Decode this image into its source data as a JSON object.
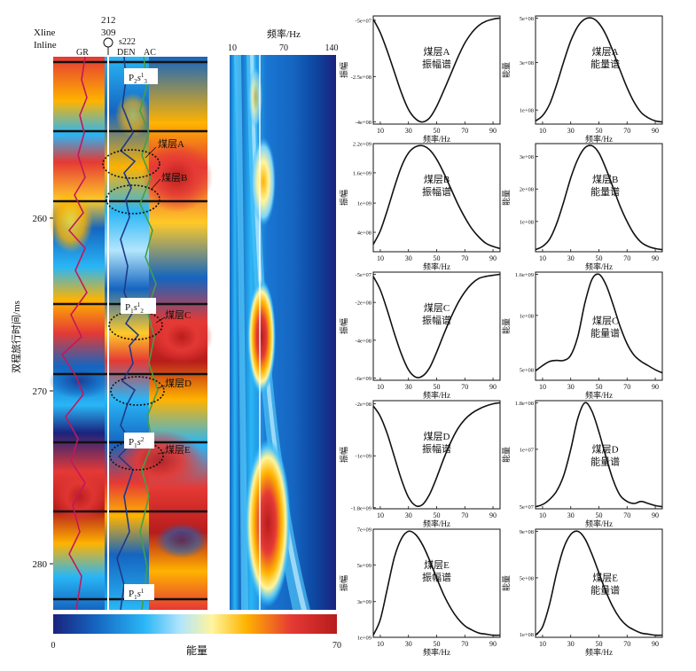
{
  "left_panel": {
    "header_xline": "Xline",
    "header_inline": "Inline",
    "xline_value": "212",
    "inline_value": "309",
    "well_name": "s222",
    "curve_labels": [
      "GR",
      "DEN",
      "AC"
    ],
    "y_axis_label": "双程旅行时间/ms",
    "y_ticks": [
      "260",
      "270",
      "280"
    ],
    "seam_labels": [
      "煤层A",
      "煤层B",
      "煤层C",
      "煤层D",
      "煤层E"
    ],
    "formation_tags": [
      {
        "main": "P",
        "sub": "2",
        "mid": "s",
        "sup": "1",
        "sub2": "3"
      },
      {
        "main": "P",
        "sub": "1",
        "mid": "s",
        "sup": "1",
        "sub2": "2"
      },
      {
        "main": "P",
        "sub": "1",
        "mid": "s",
        "sup": "2",
        "sub2": ""
      },
      {
        "main": "P",
        "sub": "1",
        "mid": "s",
        "sup": "1",
        "sub2": ""
      }
    ]
  },
  "middle_panel": {
    "x_axis_label": "频率/Hz",
    "x_ticks": [
      "10",
      "70",
      "140"
    ]
  },
  "colorbar": {
    "label": "能量",
    "min": "0",
    "max": "70",
    "colors": [
      "#1a237e",
      "#1565c0",
      "#29b6f6",
      "#b3e5fc",
      "#fff59d",
      "#ffb300",
      "#e53935",
      "#b71c1c"
    ]
  },
  "chart_data": [
    {
      "id": "A-amp",
      "type": "line",
      "text1": "煤层A",
      "text2": "振幅谱",
      "ylabel": "振幅",
      "xlabel": "频率/Hz",
      "x_ticks": [
        10,
        30,
        50,
        70,
        90
      ],
      "y_ticks": [
        "-5e+07",
        "-2.5e+08",
        "-4e+08"
      ],
      "xlim": [
        5,
        95
      ],
      "ylim": [
        0,
        1
      ],
      "y_tick_pos": [
        0.96,
        0.44,
        0.02
      ],
      "x": [
        5,
        10,
        15,
        20,
        25,
        30,
        35,
        40,
        45,
        50,
        55,
        60,
        65,
        70,
        75,
        80,
        85,
        90,
        95
      ],
      "values": [
        0.99,
        0.86,
        0.68,
        0.48,
        0.28,
        0.12,
        0.03,
        0.0,
        0.04,
        0.15,
        0.3,
        0.46,
        0.62,
        0.76,
        0.86,
        0.93,
        0.97,
        0.99,
        1.0
      ]
    },
    {
      "id": "A-en",
      "type": "line",
      "text1": "煤层A",
      "text2": "能量谱",
      "ylabel": "能量",
      "xlabel": "频率/Hz",
      "x_ticks": [
        10,
        30,
        50,
        70,
        90
      ],
      "y_ticks": [
        "5e+08",
        "3e+08",
        "1e+08"
      ],
      "xlim": [
        5,
        95
      ],
      "ylim": [
        0,
        1
      ],
      "y_tick_pos": [
        0.98,
        0.57,
        0.13
      ],
      "x": [
        5,
        10,
        15,
        20,
        25,
        30,
        35,
        40,
        45,
        50,
        55,
        60,
        65,
        70,
        75,
        80,
        85,
        90,
        95
      ],
      "values": [
        0.01,
        0.06,
        0.17,
        0.36,
        0.58,
        0.78,
        0.92,
        0.99,
        1.0,
        0.95,
        0.84,
        0.68,
        0.5,
        0.33,
        0.19,
        0.09,
        0.04,
        0.01,
        0.0
      ]
    },
    {
      "id": "B-amp",
      "type": "line",
      "text1": "煤层B",
      "text2": "振幅谱",
      "ylabel": "振幅",
      "xlabel": "频率/Hz",
      "x_ticks": [
        10,
        30,
        50,
        70,
        90
      ],
      "y_ticks": [
        "2.2e+09",
        "1.6e+09",
        "1e+09",
        "4e+08"
      ],
      "xlim": [
        5,
        95
      ],
      "ylim": [
        0,
        1
      ],
      "y_tick_pos": [
        1.0,
        0.73,
        0.45,
        0.18
      ],
      "x": [
        5,
        10,
        15,
        20,
        25,
        30,
        35,
        40,
        45,
        50,
        55,
        60,
        65,
        70,
        75,
        80,
        85,
        90,
        95
      ],
      "values": [
        0.05,
        0.18,
        0.38,
        0.6,
        0.8,
        0.93,
        0.99,
        1.0,
        0.96,
        0.87,
        0.74,
        0.59,
        0.44,
        0.31,
        0.2,
        0.12,
        0.06,
        0.03,
        0.01
      ]
    },
    {
      "id": "B-en",
      "type": "line",
      "text1": "煤层B",
      "text2": "能量谱",
      "ylabel": "能量",
      "xlabel": "频率/Hz",
      "x_ticks": [
        10,
        30,
        50,
        70,
        90
      ],
      "y_ticks": [
        "3e+08",
        "2e+08",
        "1e+08"
      ],
      "xlim": [
        5,
        95
      ],
      "ylim": [
        0,
        1
      ],
      "y_tick_pos": [
        0.88,
        0.58,
        0.28
      ],
      "x": [
        5,
        10,
        15,
        20,
        25,
        30,
        35,
        40,
        45,
        50,
        55,
        60,
        65,
        70,
        75,
        80,
        85,
        90,
        95
      ],
      "values": [
        0.0,
        0.03,
        0.1,
        0.25,
        0.46,
        0.69,
        0.87,
        0.98,
        1.0,
        0.93,
        0.78,
        0.6,
        0.42,
        0.27,
        0.15,
        0.07,
        0.03,
        0.01,
        0.0
      ]
    },
    {
      "id": "C-amp",
      "type": "line",
      "text1": "煤层C",
      "text2": "振幅谱",
      "ylabel": "振幅",
      "xlabel": "频率/Hz",
      "x_ticks": [
        10,
        30,
        50,
        70,
        90
      ],
      "y_ticks": [
        "-5e+07",
        "-2e+08",
        "-4e+08",
        "-6e+09"
      ],
      "xlim": [
        5,
        95
      ],
      "ylim": [
        0,
        1
      ],
      "y_tick_pos": [
        0.98,
        0.72,
        0.37,
        0.02
      ],
      "x": [
        5,
        10,
        15,
        20,
        25,
        30,
        35,
        40,
        45,
        50,
        55,
        60,
        65,
        70,
        75,
        80,
        85,
        90,
        95
      ],
      "values": [
        0.98,
        0.85,
        0.65,
        0.43,
        0.23,
        0.08,
        0.01,
        0.02,
        0.1,
        0.25,
        0.42,
        0.58,
        0.72,
        0.83,
        0.91,
        0.96,
        0.98,
        0.99,
        1.0
      ]
    },
    {
      "id": "C-en",
      "type": "line",
      "text1": "煤层C",
      "text2": "能量谱",
      "ylabel": "能量",
      "xlabel": "频率/Hz",
      "x_ticks": [
        10,
        30,
        50,
        70,
        90
      ],
      "y_ticks": [
        "1.6e+09",
        "1e+08",
        "5e+08"
      ],
      "xlim": [
        5,
        95
      ],
      "ylim": [
        0,
        1
      ],
      "y_tick_pos": [
        0.98,
        0.6,
        0.1
      ],
      "x": [
        5,
        10,
        15,
        20,
        25,
        30,
        35,
        40,
        45,
        50,
        55,
        60,
        65,
        70,
        75,
        80,
        85,
        90,
        95
      ],
      "values": [
        0.07,
        0.12,
        0.16,
        0.17,
        0.17,
        0.22,
        0.4,
        0.72,
        0.95,
        1.0,
        0.9,
        0.71,
        0.5,
        0.33,
        0.22,
        0.16,
        0.12,
        0.08,
        0.05
      ]
    },
    {
      "id": "D-amp",
      "type": "line",
      "text1": "煤层D",
      "text2": "振幅谱",
      "ylabel": "振幅",
      "xlabel": "频率/Hz",
      "x_ticks": [
        10,
        30,
        50,
        70,
        90
      ],
      "y_ticks": [
        "-2e+08",
        "-1e+09",
        "-1.8e+09"
      ],
      "xlim": [
        5,
        95
      ],
      "ylim": [
        0,
        1
      ],
      "y_tick_pos": [
        0.97,
        0.49,
        0.01
      ],
      "x": [
        5,
        10,
        15,
        20,
        25,
        30,
        35,
        40,
        45,
        50,
        55,
        60,
        65,
        70,
        75,
        80,
        85,
        90,
        95
      ],
      "values": [
        0.97,
        0.87,
        0.7,
        0.48,
        0.26,
        0.09,
        0.01,
        0.02,
        0.12,
        0.28,
        0.46,
        0.62,
        0.75,
        0.84,
        0.9,
        0.94,
        0.97,
        0.99,
        1.0
      ]
    },
    {
      "id": "D-en",
      "type": "line",
      "text1": "煤层D",
      "text2": "能量谱",
      "ylabel": "能量",
      "xlabel": "频率/Hz",
      "x_ticks": [
        10,
        30,
        50,
        70,
        90
      ],
      "y_ticks": [
        "1.8e+08",
        "1e+07",
        "5e+07"
      ],
      "xlim": [
        5,
        95
      ],
      "ylim": [
        0,
        1
      ],
      "y_tick_pos": [
        0.98,
        0.55,
        0.02
      ],
      "x": [
        5,
        10,
        15,
        20,
        25,
        30,
        35,
        40,
        45,
        50,
        55,
        60,
        65,
        70,
        75,
        80,
        85,
        90,
        95
      ],
      "values": [
        0.0,
        0.02,
        0.07,
        0.15,
        0.3,
        0.55,
        0.85,
        1.0,
        0.92,
        0.72,
        0.48,
        0.26,
        0.11,
        0.05,
        0.03,
        0.05,
        0.03,
        0.01,
        0.0
      ]
    },
    {
      "id": "E-amp",
      "type": "line",
      "text1": "煤层E",
      "text2": "振幅谱",
      "ylabel": "振幅",
      "xlabel": "频率/Hz",
      "x_ticks": [
        10,
        30,
        50,
        70,
        90
      ],
      "y_ticks": [
        "7e+09",
        "5e+09",
        "3e+09",
        "1e+09"
      ],
      "xlim": [
        5,
        95
      ],
      "ylim": [
        0,
        1
      ],
      "y_tick_pos": [
        1.0,
        0.67,
        0.33,
        0.0
      ],
      "x": [
        5,
        10,
        15,
        20,
        25,
        30,
        35,
        40,
        45,
        50,
        55,
        60,
        65,
        70,
        75,
        80,
        85,
        90,
        95
      ],
      "values": [
        0.0,
        0.15,
        0.45,
        0.75,
        0.93,
        1.0,
        0.97,
        0.87,
        0.72,
        0.55,
        0.39,
        0.26,
        0.16,
        0.09,
        0.05,
        0.02,
        0.01,
        0.0,
        0.0
      ]
    },
    {
      "id": "E-en",
      "type": "line",
      "text1": "煤层E",
      "text2": "能量谱",
      "ylabel": "能量",
      "xlabel": "频率/Hz",
      "x_ticks": [
        10,
        30,
        50,
        70,
        90
      ],
      "y_ticks": [
        "9e+08",
        "5e+08",
        "1e+08"
      ],
      "xlim": [
        5,
        95
      ],
      "ylim": [
        0,
        1
      ],
      "y_tick_pos": [
        0.98,
        0.55,
        0.03
      ],
      "x": [
        5,
        10,
        15,
        20,
        25,
        30,
        35,
        40,
        45,
        50,
        55,
        60,
        65,
        70,
        75,
        80,
        85,
        90,
        95
      ],
      "values": [
        0.0,
        0.08,
        0.3,
        0.6,
        0.84,
        0.97,
        1.0,
        0.93,
        0.78,
        0.6,
        0.42,
        0.27,
        0.16,
        0.09,
        0.05,
        0.02,
        0.01,
        0.0,
        0.0
      ]
    }
  ]
}
